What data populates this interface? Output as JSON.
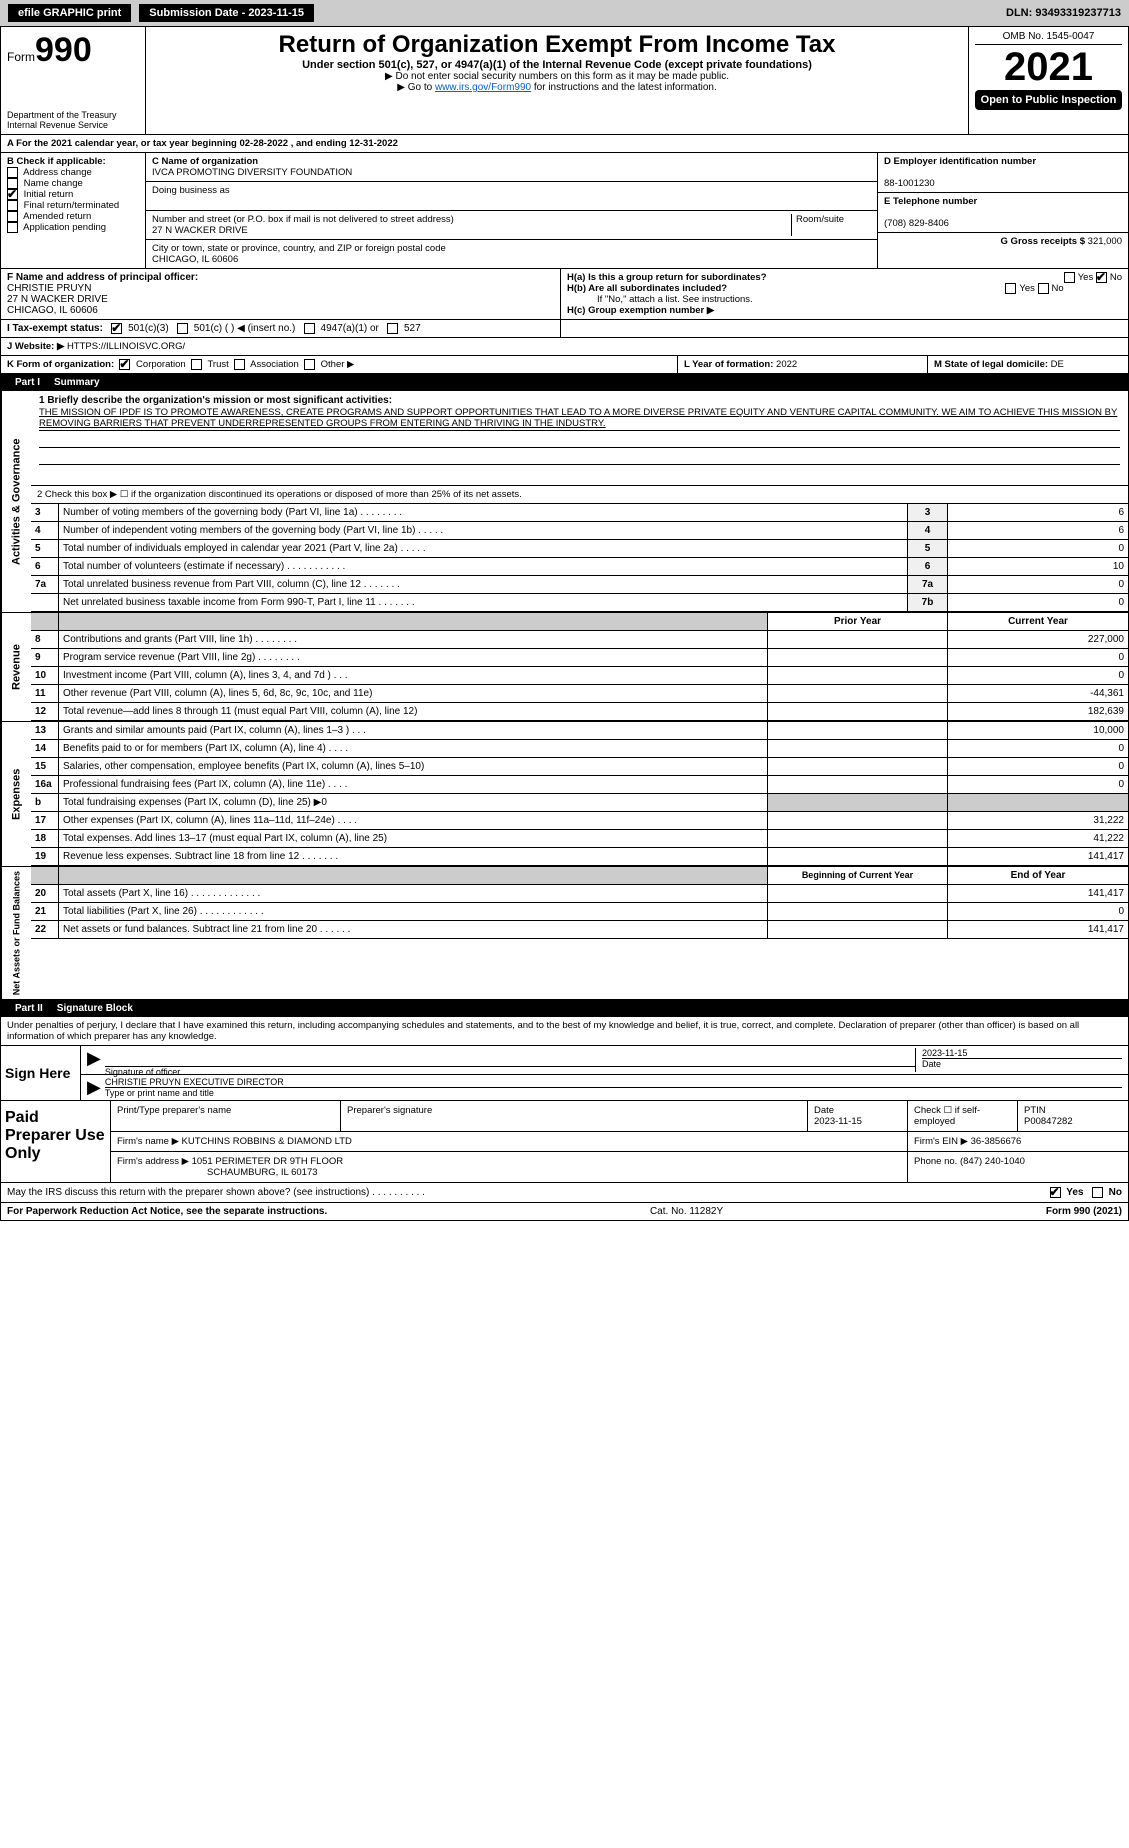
{
  "topbar": {
    "efile": "efile GRAPHIC print",
    "submission_label": "Submission Date - 2023-11-15",
    "dln": "DLN: 93493319237713"
  },
  "header": {
    "form_prefix": "Form",
    "form_number": "990",
    "dept": "Department of the Treasury\nInternal Revenue Service",
    "title": "Return of Organization Exempt From Income Tax",
    "subtitle": "Under section 501(c), 527, or 4947(a)(1) of the Internal Revenue Code (except private foundations)",
    "note1": "▶ Do not enter social security numbers on this form as it may be made public.",
    "note2_pre": "▶ Go to ",
    "note2_link": "www.irs.gov/Form990",
    "note2_post": " for instructions and the latest information.",
    "omb": "OMB No. 1545-0047",
    "year": "2021",
    "open": "Open to Public Inspection"
  },
  "a": {
    "text": "A For the 2021 calendar year, or tax year beginning 02-28-2022   , and ending 12-31-2022"
  },
  "b": {
    "label": "B Check if applicable:",
    "items": [
      "Address change",
      "Name change",
      "Initial return",
      "Final return/terminated",
      "Amended return",
      "Application pending"
    ],
    "checked_index": 2
  },
  "c": {
    "name_label": "C Name of organization",
    "name": "IVCA PROMOTING DIVERSITY FOUNDATION",
    "dba_label": "Doing business as",
    "dba": "",
    "street_label": "Number and street (or P.O. box if mail is not delivered to street address)",
    "room_label": "Room/suite",
    "street": "27 N WACKER DRIVE",
    "city_label": "City or town, state or province, country, and ZIP or foreign postal code",
    "city": "CHICAGO, IL  60606"
  },
  "d": {
    "label": "D Employer identification number",
    "value": "88-1001230"
  },
  "e": {
    "label": "E Telephone number",
    "value": "(708) 829-8406"
  },
  "g": {
    "label": "G Gross receipts $",
    "value": "321,000"
  },
  "f": {
    "label": "F  Name and address of principal officer:",
    "name": "CHRISTIE PRUYN",
    "addr1": "27 N WACKER DRIVE",
    "addr2": "CHICAGO, IL  60606"
  },
  "h": {
    "a": "H(a)  Is this a group return for subordinates?",
    "a_yes": "Yes",
    "a_no": "No",
    "b": "H(b)  Are all subordinates included?",
    "b_yes": "Yes",
    "b_no": "No",
    "b_note": "If \"No,\" attach a list. See instructions.",
    "c": "H(c)  Group exemption number ▶"
  },
  "i": {
    "label": "I  Tax-exempt status:",
    "opt1": "501(c)(3)",
    "opt2": "501(c) (   ) ◀ (insert no.)",
    "opt3": "4947(a)(1) or",
    "opt4": "527"
  },
  "j": {
    "label": "J  Website: ▶",
    "value": "HTTPS://ILLINOISVC.ORG/"
  },
  "k": {
    "label": "K Form of organization:",
    "opts": [
      "Corporation",
      "Trust",
      "Association",
      "Other ▶"
    ]
  },
  "l": {
    "label": "L Year of formation:",
    "value": "2022"
  },
  "m": {
    "label": "M State of legal domicile:",
    "value": "DE"
  },
  "part1": {
    "num": "Part I",
    "title": "Summary"
  },
  "mission": {
    "q": "1  Briefly describe the organization's mission or most significant activities:",
    "text": "THE MISSION OF IPDF IS TO PROMOTE AWARENESS, CREATE PROGRAMS AND SUPPORT OPPORTUNITIES THAT LEAD TO A MORE DIVERSE PRIVATE EQUITY AND VENTURE CAPITAL COMMUNITY. WE AIM TO ACHIEVE THIS MISSION BY REMOVING BARRIERS THAT PREVENT UNDERREPRESENTED GROUPS FROM ENTERING AND THRIVING IN THE INDUSTRY."
  },
  "gov": {
    "tab": "Activities & Governance",
    "check2": "2    Check this box ▶ ☐  if the organization discontinued its operations or disposed of more than 25% of its net assets.",
    "rows": [
      {
        "n": "3",
        "t": "Number of voting members of the governing body (Part VI, line 1a)   .    .    .    .    .    .    .    .",
        "box": "3",
        "v": "6"
      },
      {
        "n": "4",
        "t": "Number of independent voting members of the governing body (Part VI, line 1b)   .    .    .    .    .",
        "box": "4",
        "v": "6"
      },
      {
        "n": "5",
        "t": "Total number of individuals employed in calendar year 2021 (Part V, line 2a)   .    .    .    .    .",
        "box": "5",
        "v": "0"
      },
      {
        "n": "6",
        "t": "Total number of volunteers (estimate if necessary)   .    .    .    .    .    .    .    .    .    .    .",
        "box": "6",
        "v": "10"
      },
      {
        "n": "7a",
        "t": "Total unrelated business revenue from Part VIII, column (C), line 12   .    .    .    .    .    .    .",
        "box": "7a",
        "v": "0"
      },
      {
        "n": "",
        "t": "Net unrelated business taxable income from Form 990-T, Part I, line 11   .    .    .    .    .    .    .",
        "box": "7b",
        "v": "0"
      }
    ]
  },
  "colhdr": {
    "py": "Prior Year",
    "cy": "Current Year",
    "boy": "Beginning of Current Year",
    "eoy": "End of Year"
  },
  "rev": {
    "tab": "Revenue",
    "rows": [
      {
        "n": "8",
        "t": "Contributions and grants (Part VIII, line 1h)   .    .    .    .    .    .    .    .",
        "cy": "227,000"
      },
      {
        "n": "9",
        "t": "Program service revenue (Part VIII, line 2g)   .    .    .    .    .    .    .    .",
        "cy": "0"
      },
      {
        "n": "10",
        "t": "Investment income (Part VIII, column (A), lines 3, 4, and 7d )   .    .    .",
        "cy": "0"
      },
      {
        "n": "11",
        "t": "Other revenue (Part VIII, column (A), lines 5, 6d, 8c, 9c, 10c, and 11e)",
        "cy": "-44,361"
      },
      {
        "n": "12",
        "t": "Total revenue—add lines 8 through 11 (must equal Part VIII, column (A), line 12)",
        "cy": "182,639"
      }
    ]
  },
  "exp": {
    "tab": "Expenses",
    "rows": [
      {
        "n": "13",
        "t": "Grants and similar amounts paid (Part IX, column (A), lines 1–3 )   .    .    .",
        "cy": "10,000"
      },
      {
        "n": "14",
        "t": "Benefits paid to or for members (Part IX, column (A), line 4)   .    .    .    .",
        "cy": "0"
      },
      {
        "n": "15",
        "t": "Salaries, other compensation, employee benefits (Part IX, column (A), lines 5–10)",
        "cy": "0"
      },
      {
        "n": "16a",
        "t": "Professional fundraising fees (Part IX, column (A), line 11e)   .    .    .    .",
        "cy": "0"
      },
      {
        "n": "b",
        "t": "Total fundraising expenses (Part IX, column (D), line 25) ▶0",
        "cy": "",
        "shade": true
      },
      {
        "n": "17",
        "t": "Other expenses (Part IX, column (A), lines 11a–11d, 11f–24e)   .    .    .    .",
        "cy": "31,222"
      },
      {
        "n": "18",
        "t": "Total expenses. Add lines 13–17 (must equal Part IX, column (A), line 25)",
        "cy": "41,222"
      },
      {
        "n": "19",
        "t": "Revenue less expenses. Subtract line 18 from line 12   .    .    .    .    .    .    .",
        "cy": "141,417"
      }
    ]
  },
  "na": {
    "tab": "Net Assets or Fund Balances",
    "rows": [
      {
        "n": "20",
        "t": "Total assets (Part X, line 16)   .    .    .    .    .    .    .    .    .    .    .    .    .",
        "cy": "141,417"
      },
      {
        "n": "21",
        "t": "Total liabilities (Part X, line 26)   .    .    .    .    .    .    .    .    .    .    .    .",
        "cy": "0"
      },
      {
        "n": "22",
        "t": "Net assets or fund balances. Subtract line 21 from line 20   .    .    .    .    .    .",
        "cy": "141,417"
      }
    ]
  },
  "part2": {
    "num": "Part II",
    "title": "Signature Block"
  },
  "penalties": "Under penalties of perjury, I declare that I have examined this return, including accompanying schedules and statements, and to the best of my knowledge and belief, it is true, correct, and complete. Declaration of preparer (other than officer) is based on all information of which preparer has any knowledge.",
  "sign": {
    "label": "Sign Here",
    "sig": "Signature of officer",
    "date": "Date",
    "date_val": "2023-11-15",
    "name": "CHRISTIE PRUYN  EXECUTIVE DIRECTOR",
    "name_label": "Type or print name and title"
  },
  "prep": {
    "label": "Paid Preparer Use Only",
    "h1": "Print/Type preparer's name",
    "h2": "Preparer's signature",
    "h3": "Date",
    "h3v": "2023-11-15",
    "h4": "Check ☐ if self-employed",
    "h5": "PTIN",
    "h5v": "P00847282",
    "firm_label": "Firm's name    ▶",
    "firm": "KUTCHINS ROBBINS & DIAMOND LTD",
    "ein_label": "Firm's EIN ▶",
    "ein": "36-3856676",
    "addr_label": "Firm's address ▶",
    "addr1": "1051 PERIMETER DR 9TH FLOOR",
    "addr2": "SCHAUMBURG, IL  60173",
    "phone_label": "Phone no.",
    "phone": "(847) 240-1040"
  },
  "discuss": {
    "q": "May the IRS discuss this return with the preparer shown above? (see instructions)   .    .    .    .    .    .    .    .    .    .",
    "yes": "Yes",
    "no": "No"
  },
  "footer": {
    "left": "For Paperwork Reduction Act Notice, see the separate instructions.",
    "mid": "Cat. No. 11282Y",
    "right": "Form 990 (2021)"
  }
}
